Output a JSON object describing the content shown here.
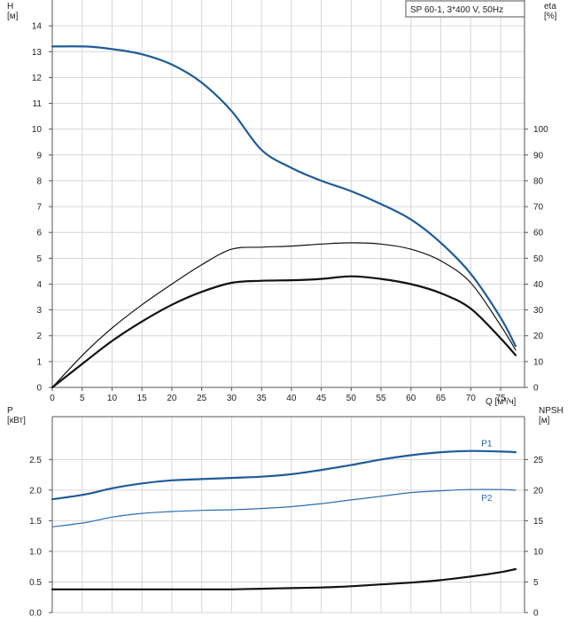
{
  "chart_data": [
    {
      "type": "line",
      "title": "SP 60-1, 3*400 V, 50Hz",
      "xlabel": "Q [м³/ч]",
      "ylabel": "H\n[м]",
      "y2label": "eta\n[%]",
      "xlim": [
        0,
        79
      ],
      "ylim": [
        0,
        15
      ],
      "y2lim": [
        0,
        150
      ],
      "x_ticks": [
        0,
        5,
        10,
        15,
        20,
        25,
        30,
        35,
        40,
        45,
        50,
        55,
        60,
        65,
        70,
        75
      ],
      "y_ticks": [
        0,
        1,
        2,
        3,
        4,
        5,
        6,
        7,
        8,
        9,
        10,
        11,
        12,
        13,
        14
      ],
      "y2_ticks": [
        0,
        10,
        20,
        30,
        40,
        50,
        60,
        70,
        80,
        90,
        100
      ],
      "grid": true,
      "series": [
        {
          "axis": "left",
          "color": "#1f5c99",
          "width": 2.2,
          "x": [
            0,
            5.5,
            10,
            15,
            20,
            25,
            30,
            35,
            40,
            45,
            50,
            55,
            60,
            65,
            70,
            75,
            77.5
          ],
          "y": [
            13.2,
            13.2,
            13.1,
            12.9,
            12.5,
            11.8,
            10.7,
            9.2,
            8.5,
            8.0,
            7.6,
            7.1,
            6.5,
            5.6,
            4.4,
            2.7,
            1.6
          ]
        },
        {
          "axis": "right",
          "color": "#111111",
          "width": 1.2,
          "x": [
            0,
            5.5,
            10,
            15,
            20,
            25,
            30,
            35,
            40,
            45,
            50,
            55,
            60,
            65,
            70,
            75,
            77.5
          ],
          "y": [
            0,
            13.5,
            23,
            32,
            40,
            47.5,
            53.5,
            54.3,
            54.7,
            55.5,
            56,
            55.5,
            53.5,
            49,
            40.5,
            24,
            14.5
          ]
        },
        {
          "axis": "right",
          "color": "#111111",
          "width": 2.2,
          "x": [
            0,
            5.5,
            10,
            15,
            20,
            25,
            30,
            35,
            40,
            45,
            50,
            55,
            60,
            65,
            70,
            75,
            77.5
          ],
          "y": [
            0,
            10,
            18,
            25.5,
            32,
            37,
            40.5,
            41.3,
            41.5,
            42,
            43,
            42,
            40,
            36.5,
            30.5,
            19,
            12.5
          ]
        }
      ]
    },
    {
      "type": "line",
      "xlabel": "",
      "ylabel": "P\n[кВт]",
      "y2label": "NPSH\n[м]",
      "xlim": [
        0,
        79
      ],
      "ylim": [
        0,
        3.2
      ],
      "y2lim": [
        0,
        32
      ],
      "y_ticks": [
        0.0,
        0.5,
        1.0,
        1.5,
        2.0,
        2.5
      ],
      "y_tick_labels": [
        "0.0",
        "0.5",
        "1.0",
        "1.5",
        "2.0",
        "2.5"
      ],
      "y2_ticks": [
        0,
        5,
        10,
        15,
        20,
        25
      ],
      "grid": true,
      "series": [
        {
          "name": "P1",
          "axis": "left",
          "color": "#1f5c99",
          "width": 2.2,
          "x": [
            0,
            5.5,
            10,
            15,
            20,
            25,
            30,
            35,
            40,
            45,
            50,
            55,
            60,
            65,
            70,
            75,
            77.5
          ],
          "y": [
            1.85,
            1.93,
            2.03,
            2.11,
            2.16,
            2.18,
            2.2,
            2.22,
            2.26,
            2.33,
            2.41,
            2.5,
            2.57,
            2.62,
            2.64,
            2.63,
            2.62
          ]
        },
        {
          "name": "P2",
          "axis": "left",
          "color": "#2a6db5",
          "width": 1.2,
          "x": [
            0,
            5.5,
            10,
            15,
            20,
            25,
            30,
            35,
            40,
            45,
            50,
            55,
            60,
            65,
            70,
            75,
            77.5
          ],
          "y": [
            1.4,
            1.47,
            1.56,
            1.62,
            1.65,
            1.67,
            1.68,
            1.7,
            1.73,
            1.78,
            1.84,
            1.9,
            1.96,
            1.99,
            2.01,
            2.01,
            2.0
          ]
        },
        {
          "axis": "right",
          "color": "#111111",
          "width": 2.2,
          "x": [
            0,
            5.5,
            10,
            15,
            20,
            25,
            30,
            35,
            40,
            45,
            50,
            55,
            60,
            65,
            70,
            75,
            77.5
          ],
          "y": [
            3.8,
            3.8,
            3.8,
            3.8,
            3.8,
            3.8,
            3.8,
            3.9,
            4.0,
            4.1,
            4.3,
            4.6,
            4.9,
            5.3,
            5.9,
            6.6,
            7.1
          ]
        }
      ]
    }
  ]
}
